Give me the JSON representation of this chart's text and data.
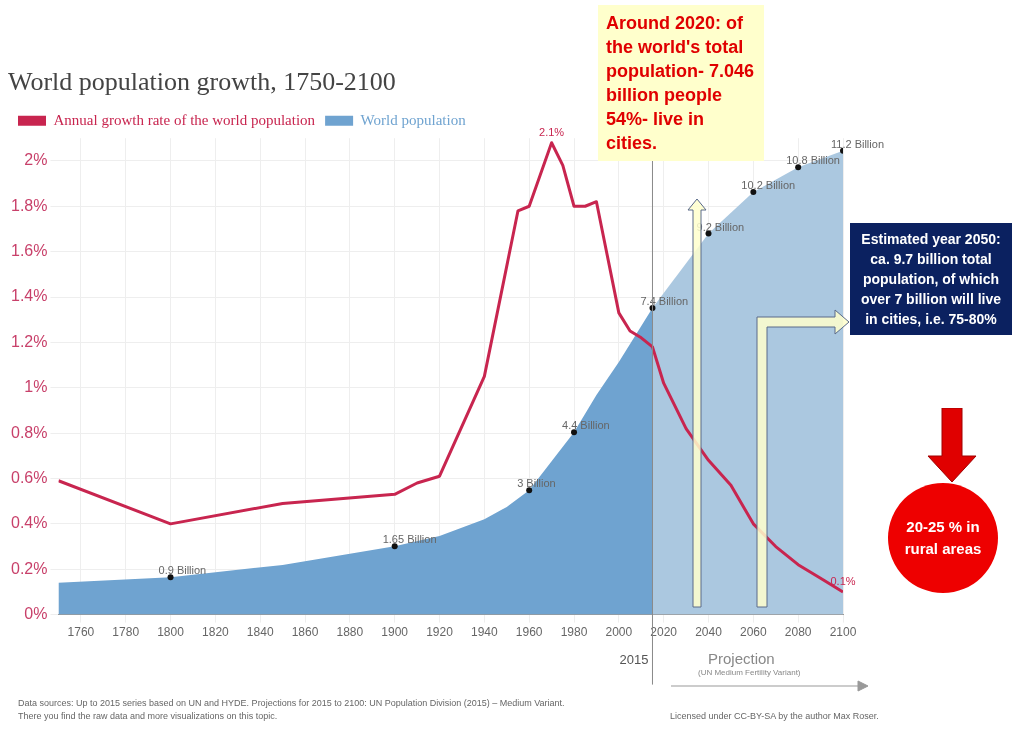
{
  "chart_data": {
    "type": "area",
    "title": "World population growth, 1750-2100",
    "xlim": [
      1750,
      2100
    ],
    "xticks": [
      1760,
      1780,
      1800,
      1820,
      1840,
      1860,
      1880,
      1900,
      1920,
      1940,
      1960,
      1980,
      2000,
      2020,
      2040,
      2060,
      2080,
      2100
    ],
    "ylim": [
      0,
      2.1
    ],
    "yticks": [
      {
        "value": 0,
        "label": "0%"
      },
      {
        "value": 0.2,
        "label": "0.2%"
      },
      {
        "value": 0.4,
        "label": "0.4%"
      },
      {
        "value": 0.6,
        "label": "0.6%"
      },
      {
        "value": 0.8,
        "label": "0.8%"
      },
      {
        "value": 1,
        "label": "1%"
      },
      {
        "value": 1.2,
        "label": "1.2%"
      },
      {
        "value": 1.4,
        "label": "1.4%"
      },
      {
        "value": 1.6,
        "label": "1.6%"
      },
      {
        "value": 1.8,
        "label": "1.8%"
      },
      {
        "value": 2,
        "label": "2%"
      }
    ],
    "y2lim": [
      0,
      11.5
    ],
    "grid": true,
    "legend": "top left",
    "series": [
      {
        "name": "Annual growth rate of the world population",
        "type": "line",
        "color": "#c8254f",
        "x": [
          1750,
          1800,
          1850,
          1900,
          1910,
          1920,
          1940,
          1955,
          1960,
          1970,
          1975,
          1980,
          1985,
          1990,
          2000,
          2005,
          2010,
          2015,
          2020,
          2030,
          2040,
          2050,
          2060,
          2070,
          2080,
          2090,
          2100
        ],
        "values": [
          0.59,
          0.4,
          0.49,
          0.53,
          0.58,
          0.61,
          1.05,
          1.78,
          1.8,
          2.08,
          1.98,
          1.8,
          1.8,
          1.82,
          1.33,
          1.25,
          1.22,
          1.18,
          1.02,
          0.82,
          0.68,
          0.57,
          0.4,
          0.3,
          0.22,
          0.16,
          0.1
        ],
        "value_labels": [
          null,
          null,
          null,
          null,
          null,
          null,
          null,
          null,
          null,
          "2.1%",
          null,
          null,
          null,
          null,
          null,
          null,
          null,
          null,
          null,
          null,
          null,
          null,
          null,
          null,
          null,
          null,
          "0.1%"
        ]
      },
      {
        "name": "World population",
        "axis": "y2",
        "color": "#6fa3d0",
        "x": [
          1750,
          1800,
          1850,
          1900,
          1920,
          1940,
          1950,
          1960,
          1970,
          1980,
          1990,
          2000,
          2015
        ],
        "values": [
          0.77,
          0.9,
          1.2,
          1.65,
          1.9,
          2.3,
          2.6,
          3,
          3.7,
          4.4,
          5.3,
          6.1,
          7.4
        ],
        "value_labels": [
          null,
          "0.9 Billion",
          null,
          "1.65 Billion",
          null,
          null,
          null,
          "3 Billion",
          null,
          "4.4 Billion",
          null,
          null,
          "7.4 Billion"
        ]
      },
      {
        "axis": "y2",
        "color": "#abc8e0",
        "x": [
          2015,
          2040,
          2060,
          2080,
          2100
        ],
        "values": [
          7.4,
          9.2,
          10.2,
          10.8,
          11.2
        ],
        "value_labels": [
          null,
          "9.2 Billion",
          "10.2 Billion",
          "10.8 Billion",
          "11.2 Billion"
        ]
      }
    ],
    "ref_lines": [
      {
        "axis": "x",
        "value": 2015,
        "label": "2015",
        "color": "#888888"
      }
    ],
    "annotations": [
      "Around 2020: of the world's total population- 7.046 billion people 54%- live in cities.",
      "Estimated year 2050: ca. 9.7 billion total population, of which over 7 billion will live in cities, i.e. 75-80%",
      "20-25 % in rural areas",
      "Projection",
      "(UN Medium Fertility Variant)",
      "Data sources: Up to 2015 series based on UN and HYDE. Projections for 2015 to 2100: UN Population Division (2015) – Medium Variant.",
      "There you find the raw data and more visualizations on this topic.",
      "Licensed under CC-BY-SA by the author Max Roser."
    ]
  }
}
